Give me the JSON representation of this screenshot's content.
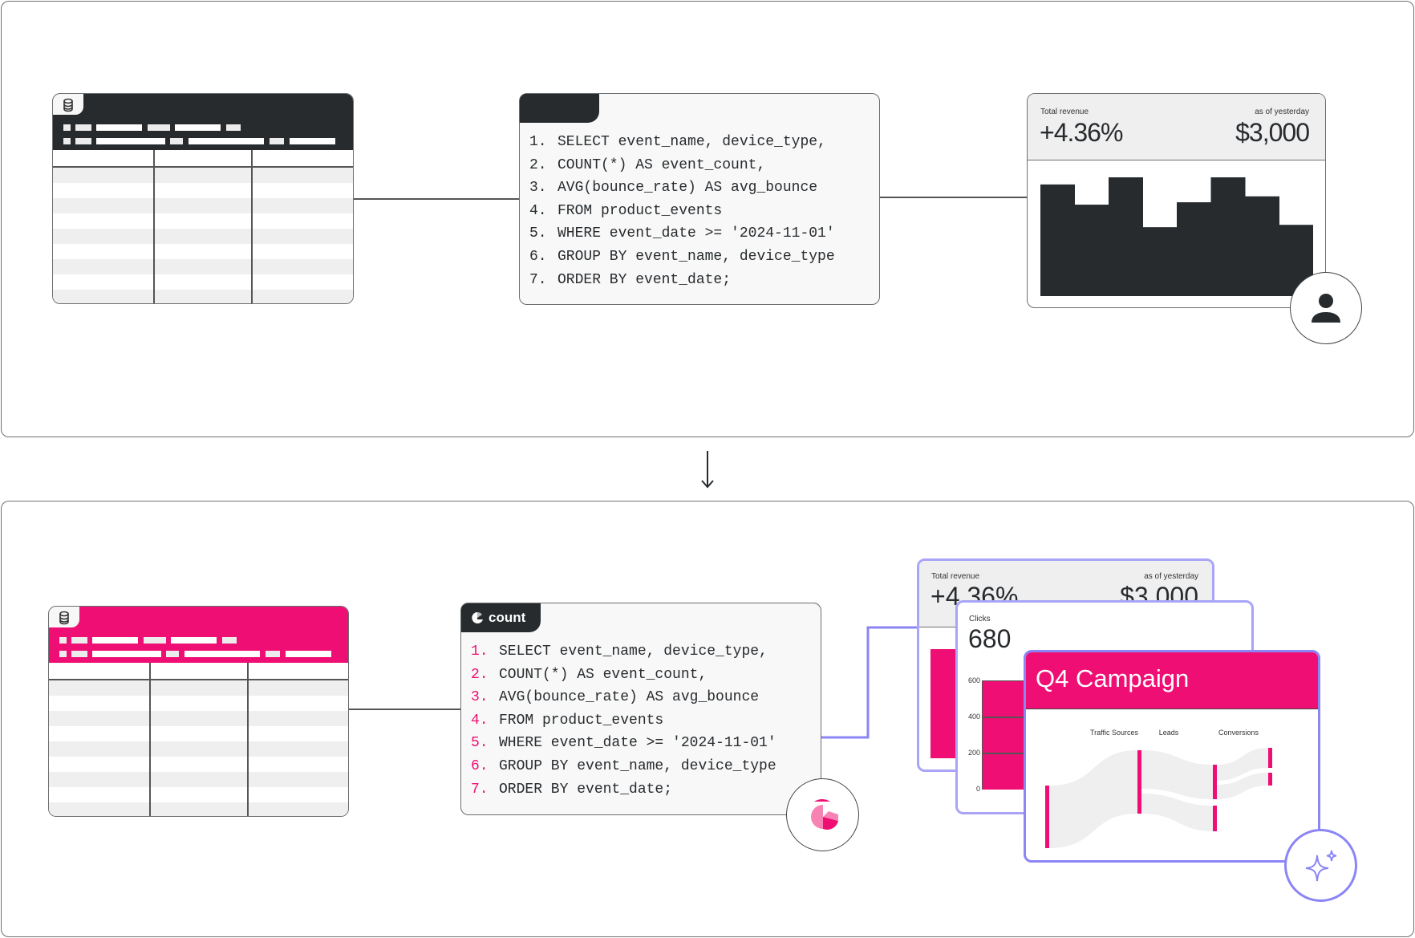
{
  "colors": {
    "dark": "#272b2e",
    "accent": "#ef0e73",
    "purple": "#8b85f5",
    "row": "#efefef"
  },
  "top": {
    "table": {
      "icon": "database-icon"
    },
    "code": {
      "line_numbers": [
        "1.",
        "2.",
        "3.",
        "4.",
        "5.",
        "6.",
        "7."
      ],
      "lines": [
        "SELECT event_name, device_type,",
        "COUNT(*) AS event_count,",
        "AVG(bounce_rate) AS avg_bounce",
        "FROM product_events",
        "WHERE event_date >= '2024-11-01'",
        "GROUP BY event_name, device_type",
        "ORDER BY event_date;"
      ]
    },
    "kpi": {
      "label": "Total revenue",
      "change": "+4.36%",
      "as_of": "as of yesterday",
      "value": "$3,000"
    },
    "avatar_icon": "user-icon"
  },
  "arrow_icon": "arrow-down-icon",
  "bottom": {
    "table": {
      "icon": "database-icon"
    },
    "code": {
      "tab_label": "count",
      "line_numbers": [
        "1.",
        "2.",
        "3.",
        "4.",
        "5.",
        "6.",
        "7."
      ],
      "lines": [
        "SELECT event_name, device_type,",
        "COUNT(*) AS event_count,",
        "AVG(bounce_rate) AS avg_bounce",
        "FROM product_events",
        "WHERE event_date >= '2024-11-01'",
        "GROUP BY event_name, device_type",
        "ORDER BY event_date;"
      ]
    },
    "logo_icon": "count-logo-icon",
    "revenue_card": {
      "label": "Total revenue",
      "change": "+4.36%",
      "as_of": "as of yesterday",
      "value": "$3,000"
    },
    "clicks_card": {
      "label": "Clicks",
      "value": "680",
      "y_ticks": [
        "600",
        "400",
        "200",
        "0"
      ]
    },
    "campaign_card": {
      "title": "Q4 Campaign",
      "stages": [
        "Traffic Sources",
        "Leads",
        "Conversions"
      ]
    },
    "sparkle_icon": "sparkle-icon"
  },
  "chart_data": {
    "type": "bar",
    "values": [
      94,
      77,
      100,
      58,
      79,
      100,
      84,
      60
    ]
  }
}
